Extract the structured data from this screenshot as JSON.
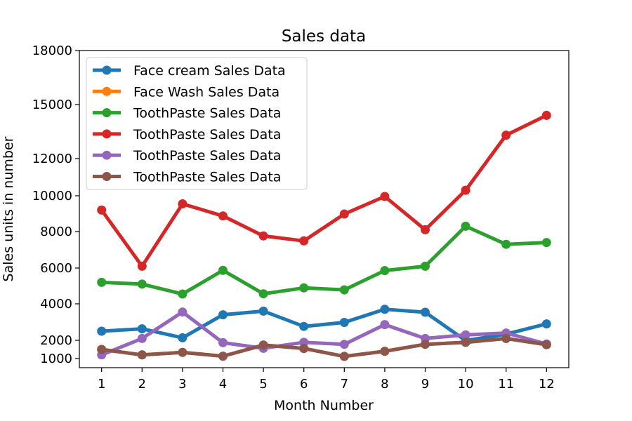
{
  "chart_data": {
    "type": "line",
    "title": "Sales data",
    "xlabel": "Month Number",
    "ylabel": "Sales units in number",
    "x": [
      1,
      2,
      3,
      4,
      5,
      6,
      7,
      8,
      9,
      10,
      11,
      12
    ],
    "xticks": [
      "1",
      "2",
      "3",
      "4",
      "5",
      "6",
      "7",
      "8",
      "9",
      "10",
      "11",
      "12"
    ],
    "yticks": [
      1000,
      2000,
      4000,
      6000,
      8000,
      10000,
      12000,
      15000,
      18000
    ],
    "ytick_labels": [
      "1000",
      "2000",
      "4000",
      "6000",
      "8000",
      "10000",
      "12000",
      "15000",
      "18000"
    ],
    "ylim": [
      500,
      18000
    ],
    "xlim": [
      0.45,
      12.55
    ],
    "grid": false,
    "legend_position": "upper-left",
    "series": [
      {
        "name": "Face cream Sales Data",
        "color": "#1f77b4",
        "values": [
          2500,
          2630,
          2140,
          3400,
          3600,
          2760,
          2980,
          3700,
          3540,
          1990,
          2340,
          2900
        ]
      },
      {
        "name": "Face Wash Sales Data",
        "color": "#ff7f0e",
        "values": [
          1500,
          1200,
          1340,
          1130,
          1740,
          1555,
          1120,
          1400,
          1780,
          1890,
          2100,
          1760
        ]
      },
      {
        "name": "ToothPaste Sales Data",
        "color": "#2ca02c",
        "values": [
          5200,
          5100,
          4550,
          5870,
          4560,
          4890,
          4780,
          5860,
          6100,
          8300,
          7300,
          7400
        ]
      },
      {
        "name": "ToothPaste Sales Data",
        "color": "#d62728",
        "values": [
          9200,
          6100,
          9550,
          8870,
          7760,
          7490,
          8980,
          9960,
          8100,
          10300,
          13300,
          14400
        ]
      },
      {
        "name": "ToothPaste Sales Data",
        "color": "#9467bd",
        "values": [
          1200,
          2100,
          3550,
          1870,
          1560,
          1890,
          1780,
          2860,
          2100,
          2300,
          2400,
          1800
        ]
      },
      {
        "name": "ToothPaste Sales Data",
        "color": "#8c564b",
        "values": [
          1500,
          1200,
          1340,
          1130,
          1740,
          1555,
          1120,
          1400,
          1780,
          1890,
          2100,
          1760
        ]
      }
    ]
  }
}
